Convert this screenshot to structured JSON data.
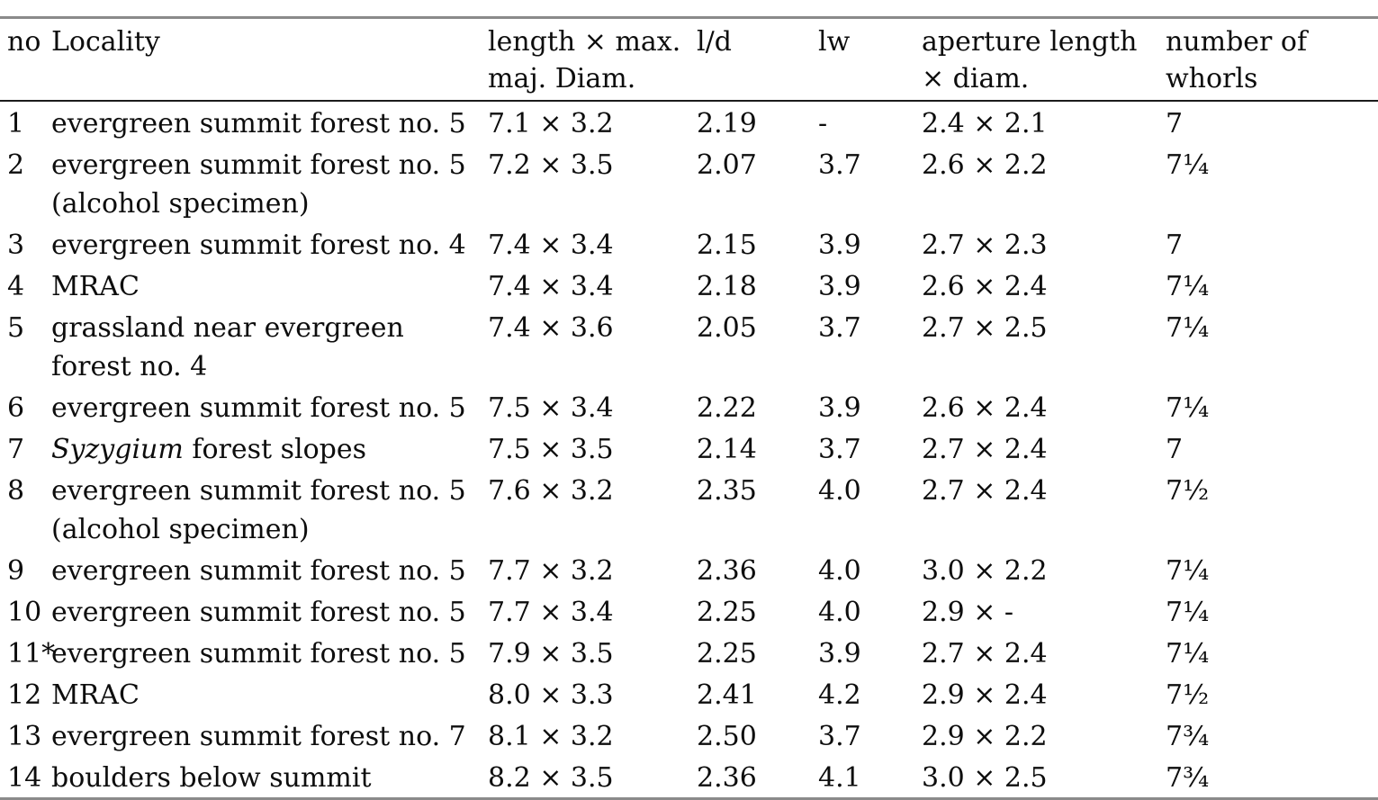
{
  "rules": {
    "heavy_rule_color": "#8a8a8a",
    "light_rule_color": "#1b1b1b",
    "text_color": "#0d0d0d",
    "background_color": "#ffffff"
  },
  "table": {
    "columns": [
      {
        "key": "no",
        "label_lines": [
          "no"
        ]
      },
      {
        "key": "locality",
        "label_lines": [
          "Locality"
        ]
      },
      {
        "key": "length_diam",
        "label_lines": [
          "length × max.",
          "maj. Diam."
        ]
      },
      {
        "key": "ld",
        "label_lines": [
          "l/d"
        ]
      },
      {
        "key": "lw",
        "label_lines": [
          "lw"
        ]
      },
      {
        "key": "aperture",
        "label_lines": [
          "aperture length",
          "× diam."
        ]
      },
      {
        "key": "whorls",
        "label_lines": [
          "number of",
          "whorls"
        ]
      }
    ],
    "rows": [
      {
        "no": "1",
        "locality_lines": [
          [
            {
              "t": "evergreen summit forest no. 5"
            }
          ]
        ],
        "length_diam": "7.1 × 3.2",
        "ld": "2.19",
        "lw": "-",
        "aperture": "2.4 × 2.1",
        "whorls": "7"
      },
      {
        "no": "2",
        "locality_lines": [
          [
            {
              "t": "evergreen summit forest no. 5"
            }
          ],
          [
            {
              "t": "(alcohol specimen)"
            }
          ]
        ],
        "length_diam": "7.2 × 3.5",
        "ld": "2.07",
        "lw": "3.7",
        "aperture": "2.6 × 2.2",
        "whorls": "7¼"
      },
      {
        "no": "3",
        "locality_lines": [
          [
            {
              "t": "evergreen summit forest no. 4"
            }
          ]
        ],
        "length_diam": "7.4 × 3.4",
        "ld": "2.15",
        "lw": "3.9",
        "aperture": "2.7 × 2.3",
        "whorls": "7"
      },
      {
        "no": "4",
        "locality_lines": [
          [
            {
              "t": "MRAC"
            }
          ]
        ],
        "length_diam": "7.4 × 3.4",
        "ld": "2.18",
        "lw": "3.9",
        "aperture": "2.6 × 2.4",
        "whorls": "7¼"
      },
      {
        "no": "5",
        "locality_lines": [
          [
            {
              "t": "grassland near evergreen"
            }
          ],
          [
            {
              "t": "forest no. 4"
            }
          ]
        ],
        "length_diam": "7.4 × 3.6",
        "ld": "2.05",
        "lw": "3.7",
        "aperture": "2.7 × 2.5",
        "whorls": "7¼"
      },
      {
        "no": "6",
        "locality_lines": [
          [
            {
              "t": "evergreen summit forest no. 5"
            }
          ]
        ],
        "length_diam": "7.5 × 3.4",
        "ld": "2.22",
        "lw": "3.9",
        "aperture": "2.6 × 2.4",
        "whorls": "7¼"
      },
      {
        "no": "7",
        "locality_lines": [
          [
            {
              "t": "Syzygium",
              "i": true
            },
            {
              "t": " forest slopes"
            }
          ]
        ],
        "length_diam": "7.5 × 3.5",
        "ld": "2.14",
        "lw": "3.7",
        "aperture": "2.7 × 2.4",
        "whorls": "7"
      },
      {
        "no": "8",
        "locality_lines": [
          [
            {
              "t": "evergreen summit forest no. 5"
            }
          ],
          [
            {
              "t": "(alcohol specimen)"
            }
          ]
        ],
        "length_diam": "7.6 × 3.2",
        "ld": "2.35",
        "lw": "4.0",
        "aperture": "2.7 × 2.4",
        "whorls": "7½"
      },
      {
        "no": "9",
        "locality_lines": [
          [
            {
              "t": "evergreen summit forest no. 5"
            }
          ]
        ],
        "length_diam": "7.7 × 3.2",
        "ld": "2.36",
        "lw": "4.0",
        "aperture": "3.0 × 2.2",
        "whorls": "7¼"
      },
      {
        "no": "10",
        "locality_lines": [
          [
            {
              "t": "evergreen summit forest no. 5"
            }
          ]
        ],
        "length_diam": "7.7 × 3.4",
        "ld": "2.25",
        "lw": "4.0",
        "aperture": "2.9 ×  -",
        "whorls": "7¼"
      },
      {
        "no": "11*",
        "locality_lines": [
          [
            {
              "t": "evergreen summit forest no. 5"
            }
          ]
        ],
        "length_diam": "7.9 × 3.5",
        "ld": "2.25",
        "lw": "3.9",
        "aperture": "2.7 × 2.4",
        "whorls": "7¼"
      },
      {
        "no": "12",
        "locality_lines": [
          [
            {
              "t": "MRAC"
            }
          ]
        ],
        "length_diam": "8.0 × 3.3",
        "ld": "2.41",
        "lw": "4.2",
        "aperture": "2.9 × 2.4",
        "whorls": "7½"
      },
      {
        "no": "13",
        "locality_lines": [
          [
            {
              "t": "evergreen summit forest no. 7"
            }
          ]
        ],
        "length_diam": "8.1 × 3.2",
        "ld": "2.50",
        "lw": "3.7",
        "aperture": "2.9 × 2.2",
        "whorls": "7¾"
      },
      {
        "no": "14",
        "locality_lines": [
          [
            {
              "t": "boulders below summit"
            }
          ]
        ],
        "length_diam": "8.2 × 3.5",
        "ld": "2.36",
        "lw": "4.1",
        "aperture": "3.0 × 2.5",
        "whorls": "7¾"
      }
    ]
  }
}
